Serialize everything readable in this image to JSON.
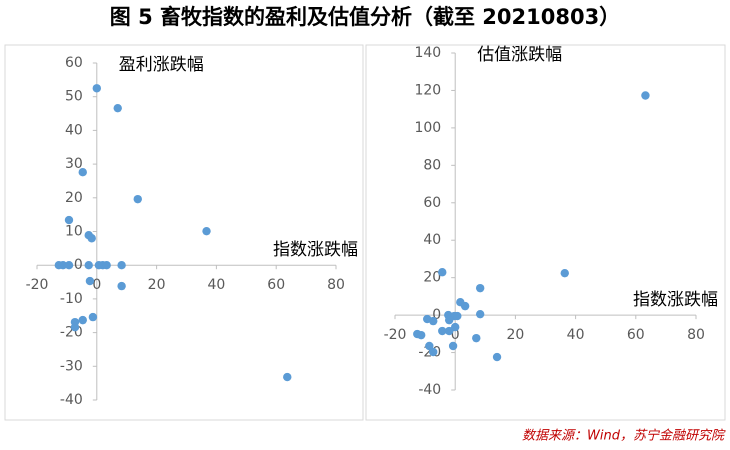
{
  "title": "图 5  畜牧指数的盈利及估值分析（截至 20210803）",
  "source": "数据来源：Wind，苏宁金融研究院",
  "chart_data": [
    {
      "type": "scatter",
      "y_label": "盈利涨跌幅",
      "x_label": "指数涨跌幅",
      "color": "#5b9bd5",
      "x": [
        0,
        7,
        13.7,
        -4.7,
        -9.3,
        -2.7,
        -1.7,
        36.7,
        -12.7,
        -11.3,
        -9.3,
        -2.7,
        0.7,
        2,
        3.3,
        8.3,
        -2.3,
        8.3,
        -7.3,
        -4.7,
        -1.3,
        -7.3,
        63.7
      ],
      "values": [
        52.5,
        46.6,
        19.6,
        27.6,
        13.4,
        8.9,
        8,
        10.1,
        0,
        0,
        0,
        0,
        0,
        0,
        0,
        0,
        -4.7,
        -6.2,
        -16.9,
        -16.3,
        -15.4,
        -18.4,
        -33.2
      ],
      "xlim": [
        -20,
        80
      ],
      "xticks": [
        -20,
        0,
        20,
        40,
        60,
        80
      ],
      "ylim": [
        -40,
        60
      ],
      "yticks": [
        -40,
        -30,
        -20,
        -10,
        0,
        10,
        20,
        30,
        40,
        50,
        60
      ]
    },
    {
      "type": "scatter",
      "y_label": "估值涨跌幅",
      "x_label": "指数涨跌幅",
      "color": "#5b9bd5",
      "x": [
        63.2,
        36.4,
        -4.3,
        8.3,
        1.7,
        3.3,
        8.3,
        -2.3,
        -0.3,
        0.7,
        -9.3,
        -7.3,
        -2,
        0,
        -4.3,
        -2,
        -12.6,
        -11.3,
        7,
        -8.6,
        -0.7,
        -7.3,
        13.9
      ],
      "values": [
        117.3,
        22.4,
        22.9,
        14.4,
        6.9,
        4.8,
        0.5,
        0,
        -0.5,
        -0.5,
        -2.1,
        -3.2,
        -2.7,
        -6.4,
        -8.5,
        -8.5,
        -10.1,
        -10.7,
        -12.3,
        -16.5,
        -16.5,
        -19.7,
        -22.4
      ],
      "xlim": [
        -20,
        80
      ],
      "xticks": [
        -20,
        0,
        20,
        40,
        60,
        80
      ],
      "ylim": [
        -40,
        140
      ],
      "yticks": [
        -40,
        -20,
        0,
        20,
        40,
        60,
        80,
        100,
        120,
        140
      ]
    }
  ]
}
